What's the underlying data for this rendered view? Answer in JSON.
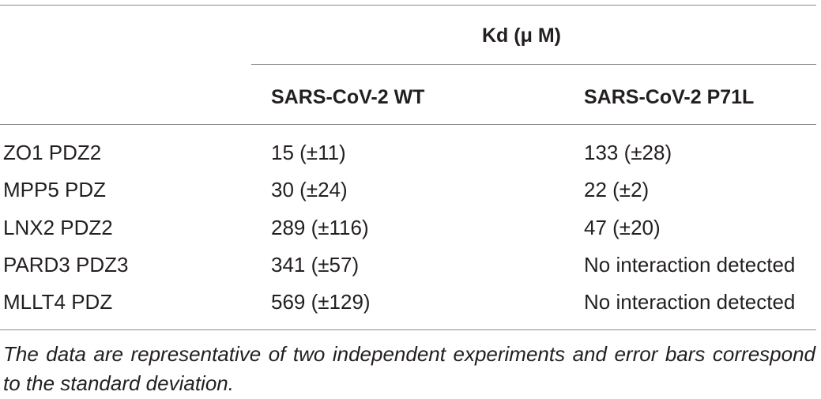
{
  "table": {
    "group_header": "Kd (μ M)",
    "columns": [
      "",
      "SARS-CoV-2 WT",
      "SARS-CoV-2 P71L"
    ],
    "rows": [
      [
        "ZO1 PDZ2",
        "15 (±11)",
        "133 (±28)"
      ],
      [
        "MPP5 PDZ",
        "30 (±24)",
        "22 (±2)"
      ],
      [
        "LNX2 PDZ2",
        "289 (±116)",
        "47 (±20)"
      ],
      [
        "PARD3 PDZ3",
        "341 (±57)",
        "No interaction detected"
      ],
      [
        "MLLT4 PDZ",
        "569 (±129)",
        "No interaction detected"
      ]
    ]
  },
  "footnote": "The data are representative of two independent experiments and error bars correspond to the standard deviation."
}
